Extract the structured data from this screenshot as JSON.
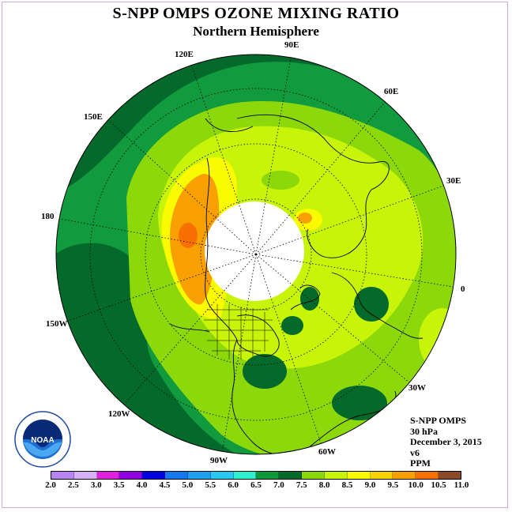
{
  "title": "S-NPP OMPS OZONE MIXING RATIO",
  "subtitle": "Northern Hemisphere",
  "longitude_labels": {
    "lon_90e": "90E",
    "lon_60e": "60E",
    "lon_30e": "30E",
    "lon_0": "0",
    "lon_30w": "30W",
    "lon_60w": "60W",
    "lon_90w": "90W",
    "lon_120w": "120W",
    "lon_150w": "150W",
    "lon_180": "180",
    "lon_150e": "150E",
    "lon_120e": "120E"
  },
  "info": {
    "instrument": "S-NPP OMPS",
    "pressure": "30 hPa",
    "date": "December 3, 2015",
    "version": "v6",
    "units": "PPM"
  },
  "logo": {
    "text": "NOAA"
  },
  "colorbar": {
    "labels": [
      "2.0",
      "2.5",
      "3.0",
      "3.5",
      "4.0",
      "4.5",
      "5.0",
      "5.5",
      "6.0",
      "6.5",
      "7.0",
      "7.5",
      "8.0",
      "8.5",
      "9.0",
      "9.5",
      "10.0",
      "10.5",
      "11.0"
    ],
    "colors": [
      "#b884f0",
      "#d8b0f8",
      "#e020e0",
      "#9000e0",
      "#0000e0",
      "#1478f0",
      "#1ea0f0",
      "#28c8f0",
      "#30f0d0",
      "#0a9a3c",
      "#046a2c",
      "#8cd80a",
      "#c8f40a",
      "#fafa00",
      "#f8d200",
      "#f8a000",
      "#f87000",
      "#f00000",
      "#8b4a2a"
    ]
  },
  "colors": {
    "dark_green": "#046a2c",
    "green": "#129a3e",
    "light_green": "#8cd80a",
    "yellow_green": "#c8f40a",
    "yellow": "#fafa00",
    "orange": "#f8a000",
    "pole_hole": "#ffffff"
  }
}
